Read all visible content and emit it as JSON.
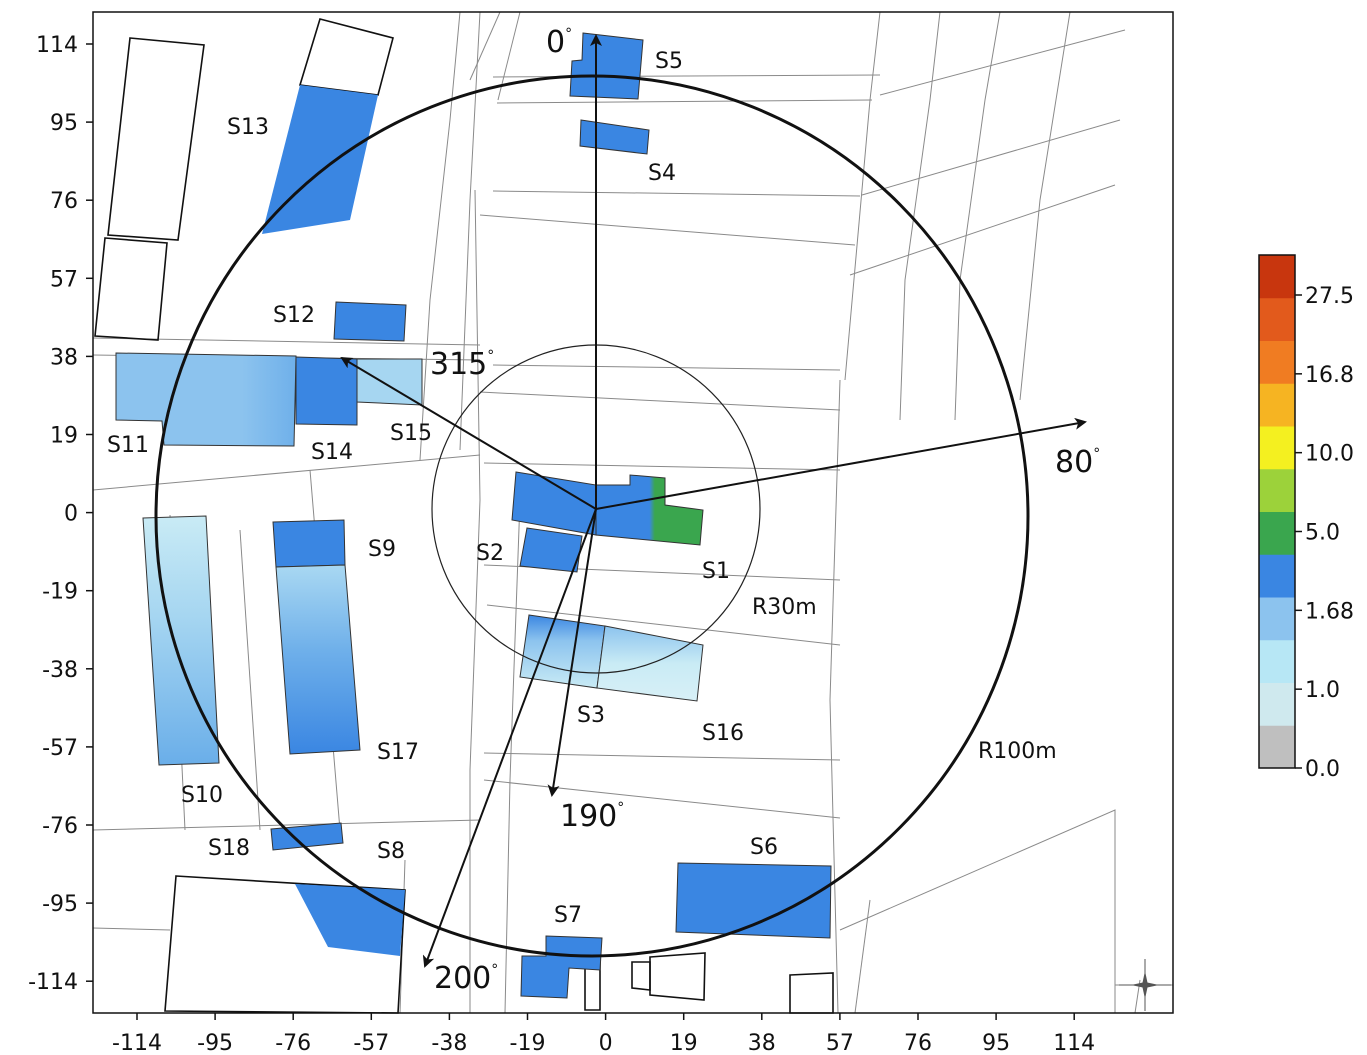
{
  "colors": {
    "blue": "#3a86e2",
    "light_blue": "#8cc3ee",
    "pale_blue": "#c9ebf5",
    "green": "#3aa64e",
    "frame": "#111111",
    "street": "#8a8a8a"
  },
  "map": {
    "axis": {
      "x_ticks": [
        "-114",
        "-95",
        "-76",
        "-57",
        "-38",
        "-19",
        "0",
        "19",
        "38",
        "57",
        "76",
        "95",
        "114"
      ],
      "y_ticks": [
        "114",
        "95",
        "76",
        "57",
        "38",
        "19",
        "0",
        "-19",
        "-38",
        "-57",
        "-76",
        "-95",
        "-114"
      ]
    },
    "buildings": [
      {
        "id": "S1",
        "label": "S1"
      },
      {
        "id": "S2",
        "label": "S2"
      },
      {
        "id": "S3",
        "label": "S3"
      },
      {
        "id": "S4",
        "label": "S4"
      },
      {
        "id": "S5",
        "label": "S5"
      },
      {
        "id": "S6",
        "label": "S6"
      },
      {
        "id": "S7",
        "label": "S7"
      },
      {
        "id": "S8",
        "label": "S8"
      },
      {
        "id": "S9",
        "label": "S9"
      },
      {
        "id": "S10",
        "label": "S10"
      },
      {
        "id": "S11",
        "label": "S11"
      },
      {
        "id": "S12",
        "label": "S12"
      },
      {
        "id": "S13",
        "label": "S13"
      },
      {
        "id": "S14",
        "label": "S14"
      },
      {
        "id": "S15",
        "label": "S15"
      },
      {
        "id": "S16",
        "label": "S16"
      },
      {
        "id": "S17",
        "label": "S17"
      },
      {
        "id": "S18",
        "label": "S18"
      }
    ],
    "directions": [
      {
        "angle": 0,
        "label": "0"
      },
      {
        "angle": 80,
        "label": "80"
      },
      {
        "angle": 190,
        "label": "190"
      },
      {
        "angle": 200,
        "label": "200"
      },
      {
        "angle": 315,
        "label": "315"
      }
    ],
    "degree_symbol": "°",
    "radii": [
      {
        "label": "R30m"
      },
      {
        "label": "R100m"
      }
    ],
    "compass_icon": "compass-rose-icon"
  },
  "colorbar": {
    "labels": [
      "27.5",
      "16.8",
      "10.0",
      "5.0",
      "1.68",
      "1.0",
      "0.0"
    ],
    "colors": [
      "#bfbfbf",
      "#cfe9ee",
      "#b7e7f5",
      "#8cc3ee",
      "#3a86e2",
      "#3aa64e",
      "#9cd23a",
      "#f4f020",
      "#f6b422",
      "#f07c22",
      "#e25a1c",
      "#c8360e"
    ]
  }
}
